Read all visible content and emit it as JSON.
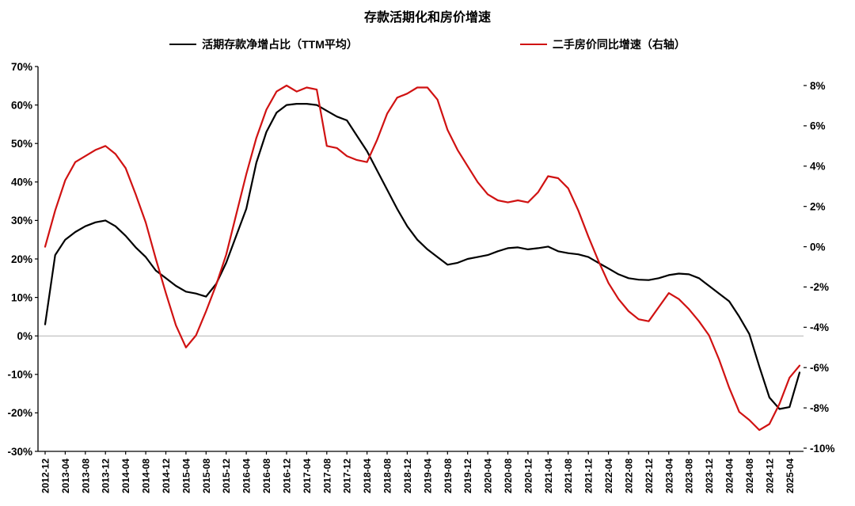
{
  "chart_data": {
    "type": "line",
    "title": "存款活期化和房价增速",
    "legend_position": "top",
    "grid": false,
    "x_tick_step_months": 4,
    "x_start": "2012-12",
    "x_tick_labels": [
      "2012-12",
      "2013-04",
      "2013-08",
      "2013-12",
      "2014-04",
      "2014-08",
      "2014-12",
      "2015-04",
      "2015-08",
      "2015-12",
      "2016-04",
      "2016-08",
      "2016-12",
      "2017-04",
      "2017-08",
      "2017-12",
      "2018-04",
      "2018-08",
      "2018-12",
      "2019-04",
      "2019-08",
      "2019-12",
      "2020-04",
      "2020-08",
      "2020-12",
      "2021-04",
      "2021-08",
      "2021-12",
      "2022-04",
      "2022-08",
      "2022-12",
      "2023-04",
      "2023-08",
      "2023-12",
      "2024-04",
      "2024-08",
      "2024-12",
      "2025-04"
    ],
    "left_axis": {
      "max": 70,
      "min": -30,
      "tick_labels": [
        "70%",
        "60%",
        "50%",
        "40%",
        "30%",
        "20%",
        "10%",
        "0%",
        "-10%",
        "-20%",
        "-30%"
      ]
    },
    "right_axis": {
      "max": 8,
      "min": -10,
      "tick_labels": [
        "8%",
        "6%",
        "4%",
        "2%",
        "0%",
        "-2%",
        "-4%",
        "-6%",
        "-8%",
        "-10%"
      ]
    },
    "zero_line_axis": "left",
    "series": [
      {
        "name": "活期存款净增占比（TTM平均）",
        "axis": "left",
        "color": "#000000",
        "x_step_months": 2,
        "values": [
          3,
          21,
          25,
          27,
          28.5,
          29.5,
          30,
          28.5,
          26,
          23,
          20.5,
          17,
          15,
          13,
          11.5,
          11,
          10.2,
          13.5,
          19,
          26,
          33,
          45,
          53,
          58,
          60,
          60.3,
          60.3,
          60,
          58.5,
          57,
          56,
          52,
          48,
          43,
          38,
          33,
          28.5,
          25,
          22.5,
          20.5,
          18.5,
          19,
          20,
          20.5,
          21,
          22,
          22.8,
          23,
          22.5,
          22.8,
          23.2,
          22,
          21.5,
          21.2,
          20.5,
          19,
          17.5,
          16,
          15,
          14.6,
          14.5,
          15,
          15.8,
          16.2,
          16,
          15,
          13,
          11,
          9,
          5,
          0.5,
          -8,
          -16,
          -19,
          -18.5,
          -9.5
        ]
      },
      {
        "name": "二手房价同比增速（右轴）",
        "axis": "right",
        "color": "#d01212",
        "x_step_months": 2,
        "values": [
          0,
          1.8,
          3.3,
          4.2,
          4.5,
          4.8,
          5.0,
          4.6,
          3.9,
          2.6,
          1.2,
          -0.6,
          -2.3,
          -3.9,
          -5.0,
          -4.4,
          -3.2,
          -1.9,
          -0.4,
          1.6,
          3.6,
          5.4,
          6.8,
          7.7,
          8.0,
          7.7,
          7.9,
          7.8,
          5.0,
          4.9,
          4.5,
          4.3,
          4.2,
          5.3,
          6.6,
          7.4,
          7.6,
          7.9,
          7.9,
          7.3,
          5.8,
          4.8,
          4.0,
          3.2,
          2.6,
          2.3,
          2.2,
          2.3,
          2.2,
          2.7,
          3.5,
          3.4,
          2.9,
          1.8,
          0.5,
          -0.7,
          -1.8,
          -2.6,
          -3.2,
          -3.6,
          -3.7,
          -3.0,
          -2.3,
          -2.6,
          -3.1,
          -3.7,
          -4.4,
          -5.6,
          -7.0,
          -8.2,
          -8.6,
          -9.1,
          -8.8,
          -7.8,
          -6.5,
          -5.9
        ]
      }
    ],
    "colors": {
      "axis": "#000000",
      "zero_line": "#b3b3b3",
      "background": "#ffffff"
    }
  }
}
